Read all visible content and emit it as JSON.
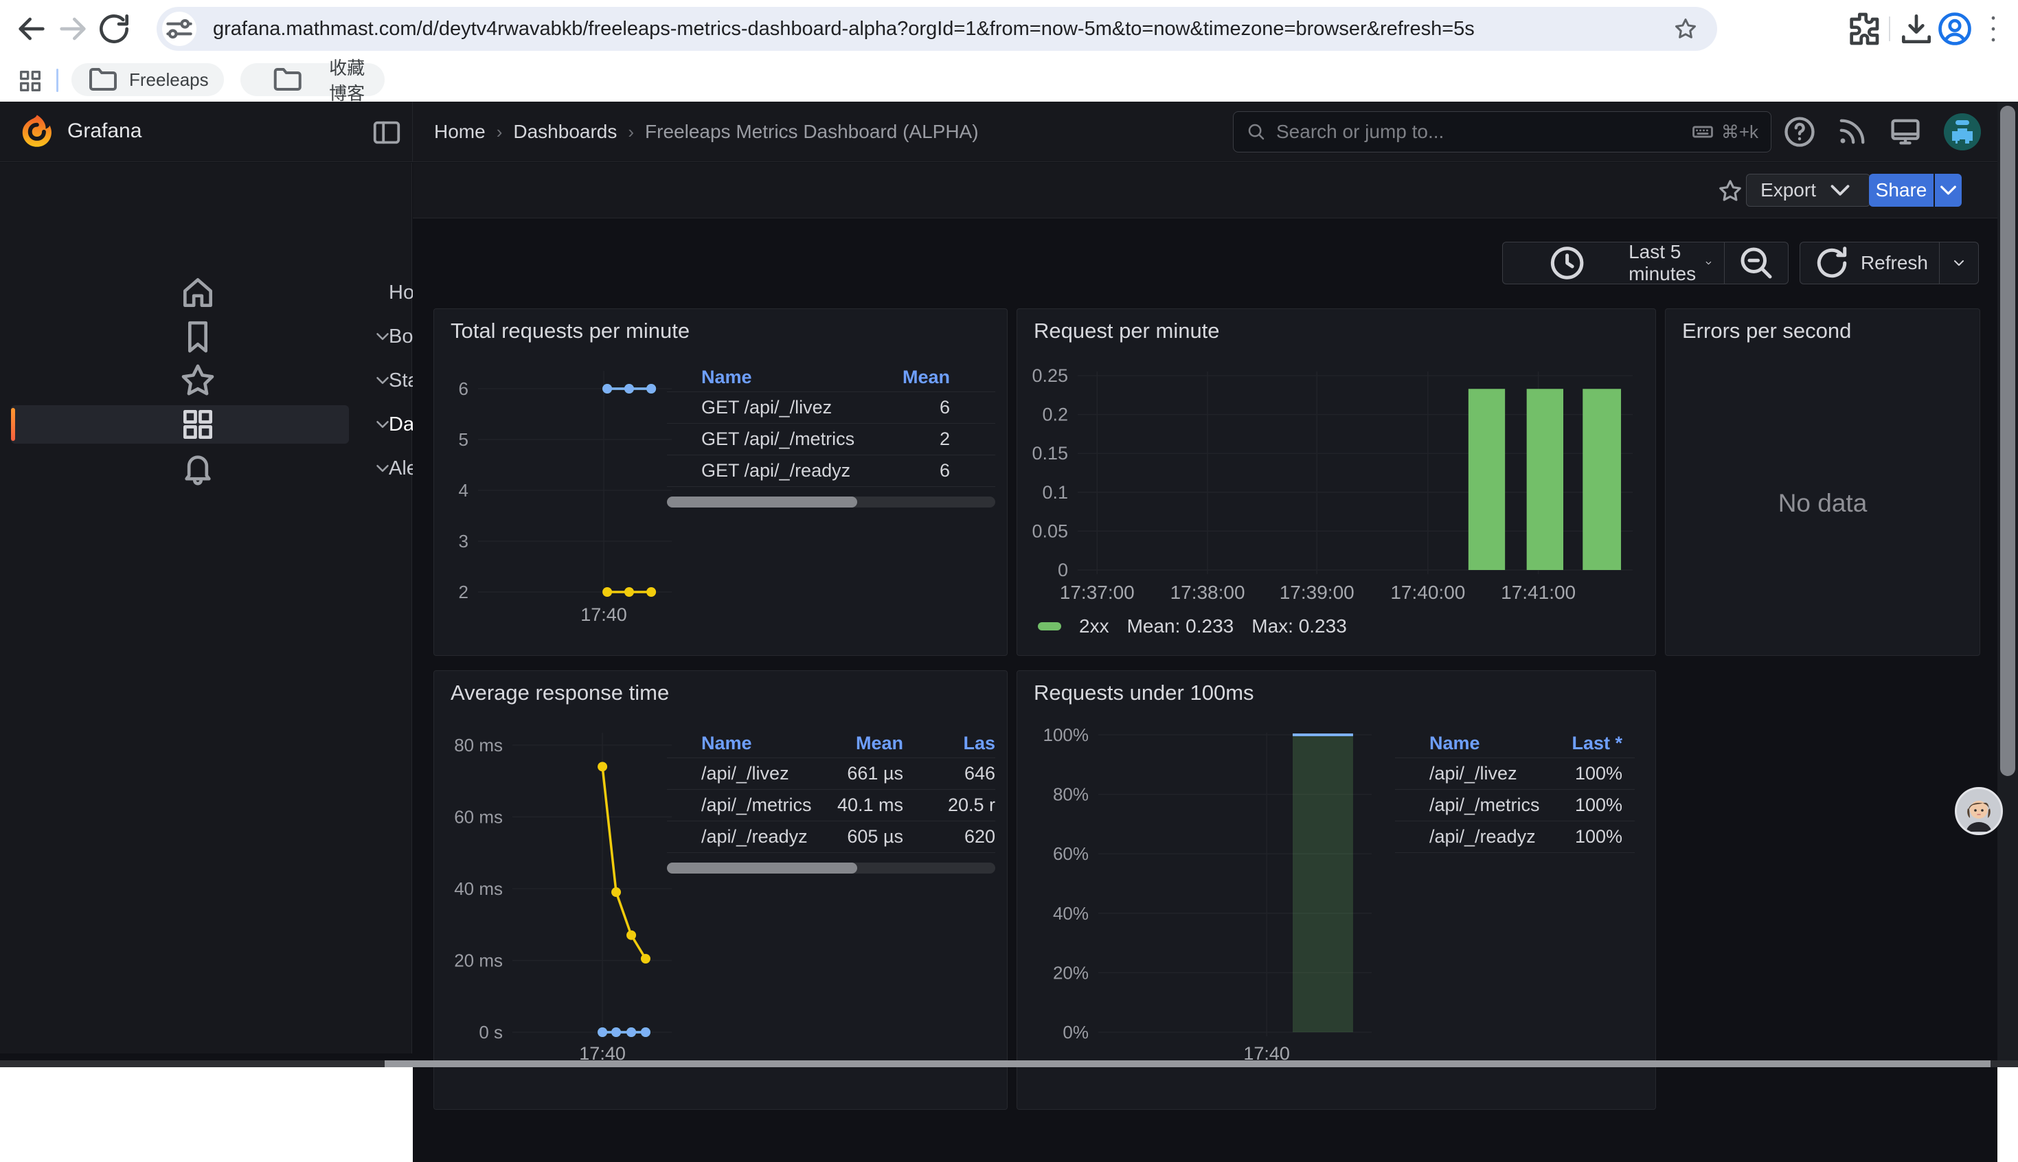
{
  "colors": {
    "green": "#73BF69",
    "yellow": "#F2CC0C",
    "blue": "#7DB1F5",
    "share_blue": "#3D71D9",
    "legend_header": "#6E9FFF"
  },
  "browser": {
    "url": "grafana.mathmast.com/d/deytv4rwavabkb/freeleaps-metrics-dashboard-alpha?orgId=1&from=now-5m&to=now&timezone=browser&refresh=5s",
    "bookmarks": [
      {
        "label": "Freeleaps"
      },
      {
        "label": "收藏博客"
      }
    ]
  },
  "header": {
    "brand": "Grafana",
    "separator": "›",
    "breadcrumb": [
      {
        "label": "Home",
        "current": false
      },
      {
        "label": "Dashboards",
        "current": false
      },
      {
        "label": "Freeleaps Metrics Dashboard (ALPHA)",
        "current": true
      }
    ],
    "search": {
      "placeholder": "Search or jump to...",
      "shortcut": "⌘+k"
    }
  },
  "actions": {
    "export_label": "Export",
    "share_label": "Share"
  },
  "timebar": {
    "range_label": "Last 5 minutes",
    "refresh_label": "Refresh"
  },
  "sidebar": {
    "items": [
      {
        "label": "Home",
        "icon": "home",
        "chevron": false,
        "active": false
      },
      {
        "label": "Bookmarks",
        "icon": "bookmark",
        "chevron": true,
        "active": false
      },
      {
        "label": "Starred",
        "icon": "star",
        "chevron": true,
        "active": false
      },
      {
        "label": "Dashboards",
        "icon": "grid",
        "chevron": true,
        "active": true
      },
      {
        "label": "Alerting",
        "icon": "bell",
        "chevron": true,
        "active": false
      }
    ]
  },
  "panels": [
    {
      "title": "Total requests per minute",
      "legend": {
        "cols": [
          "Name",
          "Mean"
        ],
        "rows": [
          {
            "color": "green",
            "cells": [
              "GET /api/_/livez",
              "6"
            ]
          },
          {
            "color": "yellow",
            "cells": [
              "GET /api/_/metrics",
              "2"
            ]
          },
          {
            "color": "blue",
            "cells": [
              "GET /api/_/readyz",
              "6"
            ]
          }
        ],
        "scrollbar": true
      },
      "chart_data": {
        "type": "line",
        "x_ticks": [
          {
            "label": "17:40",
            "f": 0.649
          }
        ],
        "y_ticks": [
          {
            "label": "6",
            "f": 0
          },
          {
            "label": "5",
            "f": 0.25
          },
          {
            "label": "4",
            "f": 0.5
          },
          {
            "label": "3",
            "f": 0.75
          },
          {
            "label": "2",
            "f": 1
          }
        ],
        "ylim": [
          2,
          6
        ],
        "series": [
          {
            "name": "GET /api/_/livez",
            "color": "green",
            "mean": 6,
            "values": [
              6,
              6,
              6
            ],
            "points": [
              [
                0.667,
                0
              ],
              [
                0.78,
                0
              ],
              [
                0.894,
                0
              ]
            ]
          },
          {
            "name": "GET /api/_/metrics",
            "color": "yellow",
            "mean": 2,
            "values": [
              2,
              2,
              2
            ],
            "points": [
              [
                0.667,
                1
              ],
              [
                0.78,
                1
              ],
              [
                0.894,
                1
              ]
            ]
          },
          {
            "name": "GET /api/_/readyz",
            "color": "blue",
            "mean": 6,
            "values": [
              6,
              6,
              6
            ],
            "points": [
              [
                0.667,
                0
              ],
              [
                0.78,
                0
              ],
              [
                0.894,
                0
              ]
            ]
          }
        ]
      }
    },
    {
      "title": "Request per minute",
      "legend_inline": {
        "color": "green",
        "name": "2xx",
        "stats": [
          "Mean: 0.233",
          "Max: 0.233"
        ]
      },
      "chart_data": {
        "type": "bar",
        "y_ticks": [
          {
            "label": "0.25",
            "f": 0
          },
          {
            "label": "0.2",
            "f": 0.2
          },
          {
            "label": "0.15",
            "f": 0.4
          },
          {
            "label": "0.1",
            "f": 0.6
          },
          {
            "label": "0.05",
            "f": 0.8
          },
          {
            "label": "0",
            "f": 1
          }
        ],
        "ylim": [
          0,
          0.25
        ],
        "x_ticks": [
          {
            "label": "17:37:00",
            "f": 0.035
          },
          {
            "label": "17:38:00",
            "f": 0.234
          },
          {
            "label": "17:39:00",
            "f": 0.431
          },
          {
            "label": "17:40:00",
            "f": 0.631
          },
          {
            "label": "17:41:00",
            "f": 0.83
          }
        ],
        "series_name": "2xx",
        "mean": 0.233,
        "max": 0.233,
        "color": "green",
        "bars": [
          {
            "time": "17:40:30",
            "value": 0.233,
            "x0": 0.704,
            "x1": 0.77,
            "ytop": 0.068
          },
          {
            "time": "17:41:00",
            "value": 0.233,
            "x0": 0.809,
            "x1": 0.875,
            "ytop": 0.068
          },
          {
            "time": "17:41:30",
            "value": 0.233,
            "x0": 0.91,
            "x1": 0.979,
            "ytop": 0.068
          }
        ]
      }
    },
    {
      "title": "Errors per second",
      "no_data": "No data"
    },
    {
      "title": "Average response time",
      "legend": {
        "cols": [
          "Name",
          "Mean",
          "Las"
        ],
        "rows": [
          {
            "color": "green",
            "cells": [
              "/api/_/livez",
              "661 µs",
              "646"
            ]
          },
          {
            "color": "yellow",
            "cells": [
              "/api/_/metrics",
              "40.1 ms",
              "20.5 r"
            ]
          },
          {
            "color": "blue",
            "cells": [
              "/api/_/readyz",
              "605 µs",
              "620"
            ]
          }
        ],
        "scrollbar": true
      },
      "chart_data": {
        "type": "line",
        "x_ticks": [
          {
            "label": "17:40",
            "f": 0.565
          }
        ],
        "y_ticks": [
          {
            "label": "80 ms",
            "f": 0
          },
          {
            "label": "60 ms",
            "f": 0.25
          },
          {
            "label": "40 ms",
            "f": 0.5
          },
          {
            "label": "20 ms",
            "f": 0.75
          },
          {
            "label": "0 s",
            "f": 1
          }
        ],
        "ylim_ms": [
          0,
          80
        ],
        "series": [
          {
            "name": "/api/_/livez",
            "color": "green",
            "mean": "661 µs",
            "values_ms": [
              0.7,
              0.7,
              0.7,
              0.7
            ],
            "points": [
              [
                0.565,
                1
              ],
              [
                0.651,
                1
              ],
              [
                0.746,
                1
              ],
              [
                0.836,
                1
              ]
            ]
          },
          {
            "name": "/api/_/metrics",
            "color": "yellow",
            "mean": "40.1 ms",
            "values_ms": [
              74,
              39,
              27,
              20.5
            ],
            "points": [
              [
                0.565,
                0.075
              ],
              [
                0.651,
                0.512
              ],
              [
                0.746,
                0.662
              ],
              [
                0.836,
                0.744
              ]
            ]
          },
          {
            "name": "/api/_/readyz",
            "color": "blue",
            "mean": "605 µs",
            "values_ms": [
              0.6,
              0.6,
              0.6,
              0.6
            ],
            "points": [
              [
                0.565,
                1
              ],
              [
                0.651,
                1
              ],
              [
                0.746,
                1
              ],
              [
                0.836,
                1
              ]
            ]
          }
        ]
      }
    },
    {
      "title": "Requests under 100ms",
      "legend": {
        "cols": [
          "Name",
          "Last *"
        ],
        "rows": [
          {
            "color": "green",
            "cells": [
              "/api/_/livez",
              "100%"
            ]
          },
          {
            "color": "yellow",
            "cells": [
              "/api/_/metrics",
              "100%"
            ]
          },
          {
            "color": "blue",
            "cells": [
              "/api/_/readyz",
              "100%"
            ]
          }
        ],
        "scrollbar": false
      },
      "chart_data": {
        "type": "area",
        "x_ticks": [
          {
            "label": "17:40",
            "f": 0.616
          }
        ],
        "y_ticks": [
          {
            "label": "100%",
            "f": 0
          },
          {
            "label": "80%",
            "f": 0.2
          },
          {
            "label": "60%",
            "f": 0.4
          },
          {
            "label": "40%",
            "f": 0.6
          },
          {
            "label": "20%",
            "f": 0.8
          },
          {
            "label": "0%",
            "f": 1
          }
        ],
        "ylim": [
          "0%",
          "100%"
        ],
        "bars": [
          {
            "value": "100%",
            "x0": 0.711,
            "x1": 0.932,
            "ytop": 0,
            "fill": "rgba(115,191,105,0.22)"
          }
        ],
        "top_line": {
          "color": "blue",
          "x0": 0.711,
          "x1": 0.932,
          "y": 0,
          "value": "100%"
        }
      }
    }
  ]
}
